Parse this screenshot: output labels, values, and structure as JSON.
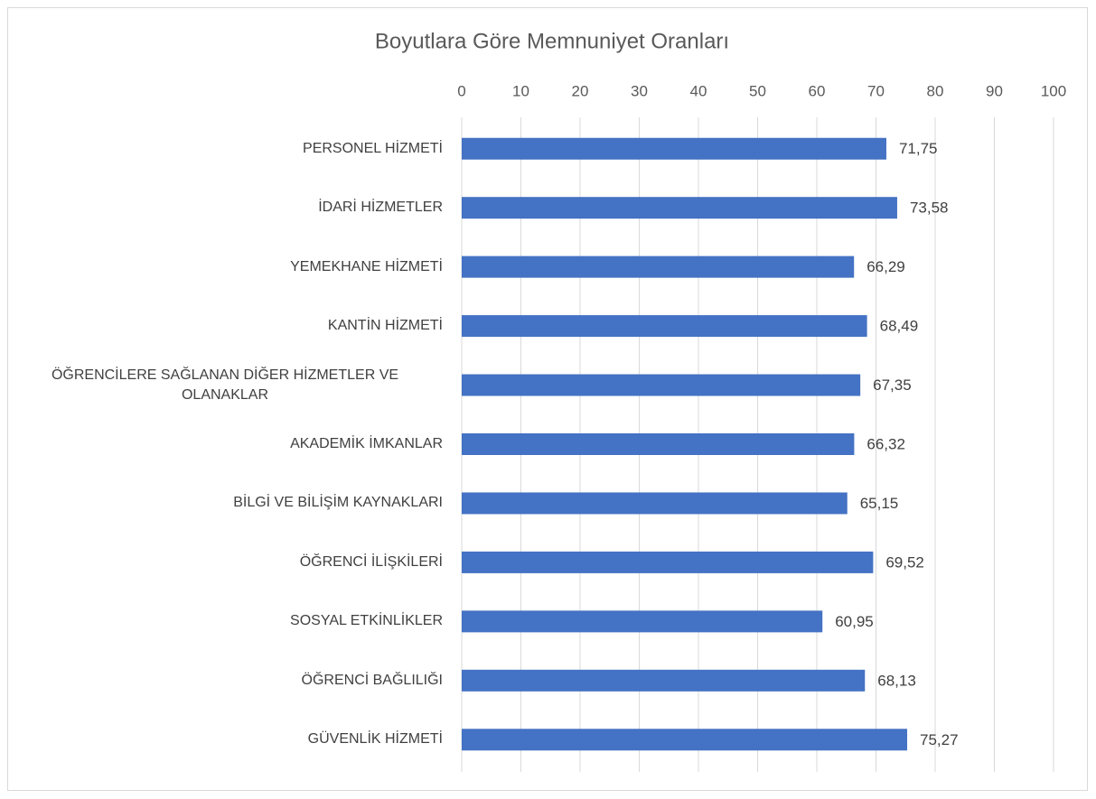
{
  "chart_data": {
    "type": "bar",
    "orientation": "horizontal",
    "title": "Boyutlara Göre Memnuniyet Oranları",
    "categories": [
      "PERSONEL HİZMETİ",
      "İDARİ HİZMETLER",
      "YEMEKHANE HİZMETİ",
      "KANTİN HİZMETİ",
      "ÖĞRENCİLERE SAĞLANAN DİĞER HİZMETLER VE OLANAKLAR",
      "AKADEMİK İMKANLAR",
      "BİLGİ VE BİLİŞİM KAYNAKLARI",
      "ÖĞRENCİ İLİŞKİLERİ",
      "SOSYAL ETKİNLİKLER",
      "ÖĞRENCİ BAĞLILIĞI",
      "GÜVENLİK HİZMETİ"
    ],
    "values": [
      71.75,
      73.58,
      66.29,
      68.49,
      67.35,
      66.32,
      65.15,
      69.52,
      60.95,
      68.13,
      75.27
    ],
    "value_labels": [
      "71,75",
      "73,58",
      "66,29",
      "68,49",
      "67,35",
      "66,32",
      "65,15",
      "69,52",
      "60,95",
      "68,13",
      "75,27"
    ],
    "color": "#4472c4",
    "xlim": [
      0,
      100
    ],
    "xticks": [
      0,
      10,
      20,
      30,
      40,
      50,
      60,
      70,
      80,
      90,
      100
    ],
    "grid": true
  }
}
